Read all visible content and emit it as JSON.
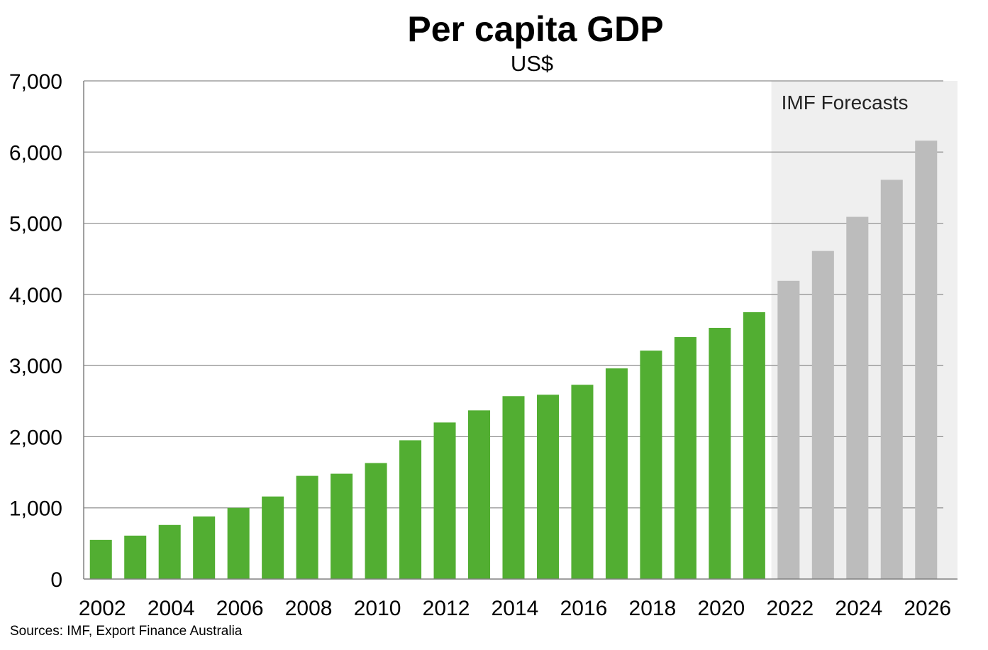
{
  "chart_data": {
    "type": "bar",
    "title": "Per capita GDP",
    "subtitle": "US$",
    "xlabel": "",
    "ylabel": "",
    "ylim": [
      0,
      7000
    ],
    "yticks": [
      "0",
      "1,000",
      "2,000",
      "3,000",
      "4,000",
      "5,000",
      "6,000",
      "7,000"
    ],
    "ytick_values": [
      0,
      1000,
      2000,
      3000,
      4000,
      5000,
      6000,
      7000
    ],
    "categories": [
      "2002",
      "2003",
      "2004",
      "2005",
      "2006",
      "2007",
      "2008",
      "2009",
      "2010",
      "2011",
      "2012",
      "2013",
      "2014",
      "2015",
      "2016",
      "2017",
      "2018",
      "2019",
      "2020",
      "2021",
      "2022",
      "2023",
      "2024",
      "2025",
      "2026"
    ],
    "x_tick_labels": [
      "2002",
      "2004",
      "2006",
      "2008",
      "2010",
      "2012",
      "2014",
      "2016",
      "2018",
      "2020",
      "2022",
      "2024",
      "2026"
    ],
    "values": [
      550,
      610,
      760,
      880,
      1000,
      1160,
      1450,
      1480,
      1630,
      1950,
      2200,
      2370,
      2570,
      2590,
      2730,
      2960,
      3210,
      3400,
      3530,
      3750,
      4190,
      4610,
      5090,
      5610,
      6160
    ],
    "forecast_start": "2022",
    "forecast_label": "IMF Forecasts",
    "grid": true,
    "legend": "none",
    "colors": {
      "actual": "#52ae32",
      "forecast": "#bcbcbc",
      "forecast_band": "#efefef",
      "grid": "#8c8c8c"
    },
    "source": "Sources: IMF, Export Finance Australia"
  }
}
